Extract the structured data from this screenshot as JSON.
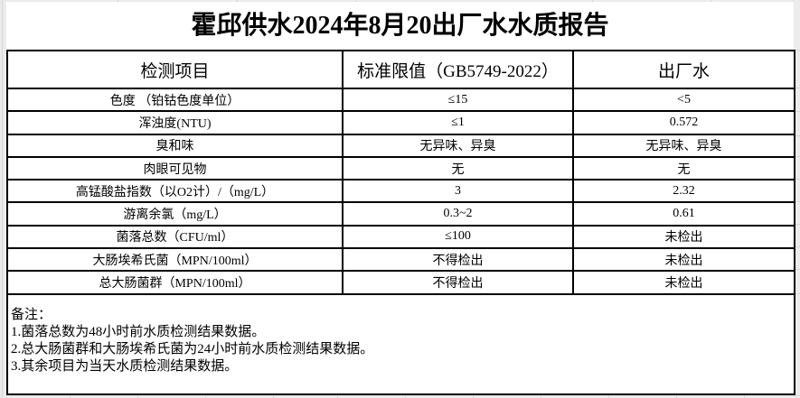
{
  "page": {
    "title": "霍邱供水2024年8月20出厂水水质报告"
  },
  "table": {
    "headers": [
      "检测项目",
      "标准限值（GB5749-2022）",
      "出厂水"
    ],
    "rows": [
      [
        "色度 （铂钴色度单位）",
        "≤15",
        "<5"
      ],
      [
        "浑浊度(NTU)",
        "≤1",
        "0.572"
      ],
      [
        "臭和味",
        "无异味、异臭",
        "无异味、异臭"
      ],
      [
        "肉眼可见物",
        "无",
        "无"
      ],
      [
        "高锰酸盐指数（以O2计）/（mg/L）",
        "3",
        "2.32"
      ],
      [
        "游离余氯（mg/L）",
        "0.3~2",
        "0.61"
      ],
      [
        "菌落总数（CFU/ml）",
        "≤100",
        "未检出"
      ],
      [
        "大肠埃希氏菌（MPN/100ml）",
        "不得检出",
        "未检出"
      ],
      [
        "总大肠菌群（MPN/100ml）",
        "不得检出",
        "未检出"
      ]
    ]
  },
  "notes": {
    "label": "备注：",
    "items": [
      "1.菌落总数为48小时前水质检测结果数据。",
      "2.总大肠菌群和大肠埃希氏菌为24小时前水质检测结果数据。",
      "3.其余项目为当天水质检测结果数据。"
    ]
  },
  "colors": {
    "text": "#000000",
    "table_border": "#000000",
    "sheet_background": "#ffffff",
    "outer_background": "#ececec",
    "gridline": "#d6d6d6"
  }
}
